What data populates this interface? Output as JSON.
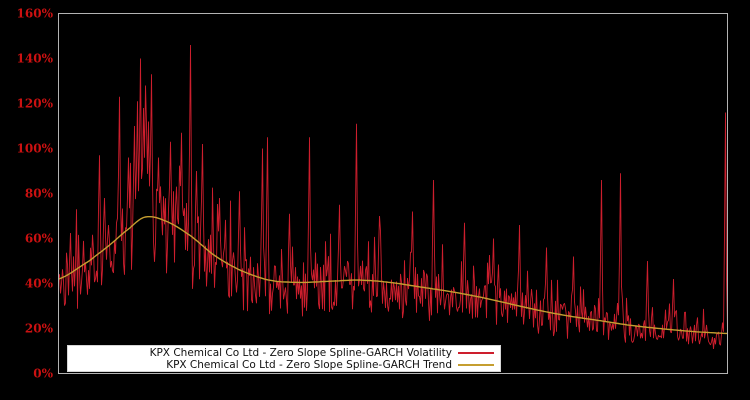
{
  "colors": {
    "background": "#000000",
    "plot_border": "#b3b3b3",
    "volatility": "#cd1e2d",
    "trend": "#c59e30",
    "tick_label": "#cc1111",
    "legend_bg": "#ffffff",
    "legend_text": "#111111"
  },
  "y_axis": {
    "ticks": [
      "0%",
      "20%",
      "40%",
      "60%",
      "80%",
      "100%",
      "120%",
      "140%",
      "160%"
    ],
    "tick_values": [
      0,
      20,
      40,
      60,
      80,
      100,
      120,
      140,
      160
    ]
  },
  "x_axis": {
    "labels_visible": false
  },
  "legend": {
    "items": [
      {
        "label": "KPX Chemical Co Ltd - Zero Slope Spline-GARCH Volatility",
        "color_key": "volatility"
      },
      {
        "label": "KPX Chemical Co Ltd - Zero Slope Spline-GARCH Trend",
        "color_key": "trend"
      }
    ]
  },
  "chart_data": {
    "type": "line",
    "title": "",
    "xlabel": "",
    "ylabel": "",
    "y_unit": "%",
    "ylim": [
      0,
      160
    ],
    "grid": false,
    "legend_position": "bottom-left",
    "series": [
      {
        "name": "KPX Chemical Co Ltd - Zero Slope Spline-GARCH Volatility",
        "style": "noisy-spiky-line",
        "color_key": "volatility"
      },
      {
        "name": "KPX Chemical Co Ltd - Zero Slope Spline-GARCH Trend",
        "style": "smooth-line",
        "color_key": "trend"
      }
    ],
    "n_points": 670,
    "seed": 42,
    "trend_points": [
      {
        "f": 0.0,
        "v": 42
      },
      {
        "f": 0.046,
        "v": 50
      },
      {
        "f": 0.076,
        "v": 57
      },
      {
        "f": 0.106,
        "v": 64.5
      },
      {
        "f": 0.129,
        "v": 69.5
      },
      {
        "f": 0.158,
        "v": 68
      },
      {
        "f": 0.196,
        "v": 61.5
      },
      {
        "f": 0.233,
        "v": 52.5
      },
      {
        "f": 0.271,
        "v": 46
      },
      {
        "f": 0.315,
        "v": 41.5
      },
      {
        "f": 0.36,
        "v": 40.5
      },
      {
        "f": 0.405,
        "v": 41
      },
      {
        "f": 0.45,
        "v": 41.5
      },
      {
        "f": 0.495,
        "v": 40.5
      },
      {
        "f": 0.54,
        "v": 38.5
      },
      {
        "f": 0.584,
        "v": 36.5
      },
      {
        "f": 0.629,
        "v": 34
      },
      {
        "f": 0.674,
        "v": 31
      },
      {
        "f": 0.719,
        "v": 28
      },
      {
        "f": 0.764,
        "v": 25.5
      },
      {
        "f": 0.809,
        "v": 23.5
      },
      {
        "f": 0.853,
        "v": 21.5
      },
      {
        "f": 0.898,
        "v": 20
      },
      {
        "f": 0.943,
        "v": 18.8
      },
      {
        "f": 0.973,
        "v": 18.2
      },
      {
        "f": 1.0,
        "v": 17.8
      }
    ],
    "spikes": [
      {
        "f": 0.0613,
        "p": 97
      },
      {
        "f": 0.0687,
        "p": 78
      },
      {
        "f": 0.0912,
        "p": 123
      },
      {
        "f": 0.105,
        "p": 96
      },
      {
        "f": 0.114,
        "p": 110
      },
      {
        "f": 0.1181,
        "p": 121
      },
      {
        "f": 0.1226,
        "p": 140
      },
      {
        "f": 0.127,
        "p": 118
      },
      {
        "f": 0.13,
        "p": 128
      },
      {
        "f": 0.1345,
        "p": 112
      },
      {
        "f": 0.139,
        "p": 133
      },
      {
        "f": 0.15,
        "p": 96
      },
      {
        "f": 0.1674,
        "p": 103
      },
      {
        "f": 0.1839,
        "p": 107
      },
      {
        "f": 0.1973,
        "p": 146
      },
      {
        "f": 0.2063,
        "p": 90
      },
      {
        "f": 0.2153,
        "p": 102
      },
      {
        "f": 0.2406,
        "p": 78
      },
      {
        "f": 0.2706,
        "p": 81
      },
      {
        "f": 0.3049,
        "p": 100
      },
      {
        "f": 0.3124,
        "p": 105
      },
      {
        "f": 0.3453,
        "p": 71
      },
      {
        "f": 0.3752,
        "p": 105
      },
      {
        "f": 0.42,
        "p": 75
      },
      {
        "f": 0.4454,
        "p": 111
      },
      {
        "f": 0.48,
        "p": 70
      },
      {
        "f": 0.5292,
        "p": 72
      },
      {
        "f": 0.5606,
        "p": 86
      },
      {
        "f": 0.6069,
        "p": 67
      },
      {
        "f": 0.65,
        "p": 60
      },
      {
        "f": 0.6891,
        "p": 66
      },
      {
        "f": 0.73,
        "p": 56
      },
      {
        "f": 0.77,
        "p": 52
      },
      {
        "f": 0.8117,
        "p": 86
      },
      {
        "f": 0.8401,
        "p": 89
      },
      {
        "f": 0.88,
        "p": 50
      },
      {
        "f": 0.92,
        "p": 42
      },
      {
        "f": 0.997,
        "p": 116
      }
    ],
    "noise": {
      "down_spread": 0.52,
      "center": 0.58,
      "up_prob": 0.12,
      "up_base": 0.15,
      "up_max": 0.45,
      "dip_prob": 0.06,
      "dip_base": 0.6
    }
  }
}
